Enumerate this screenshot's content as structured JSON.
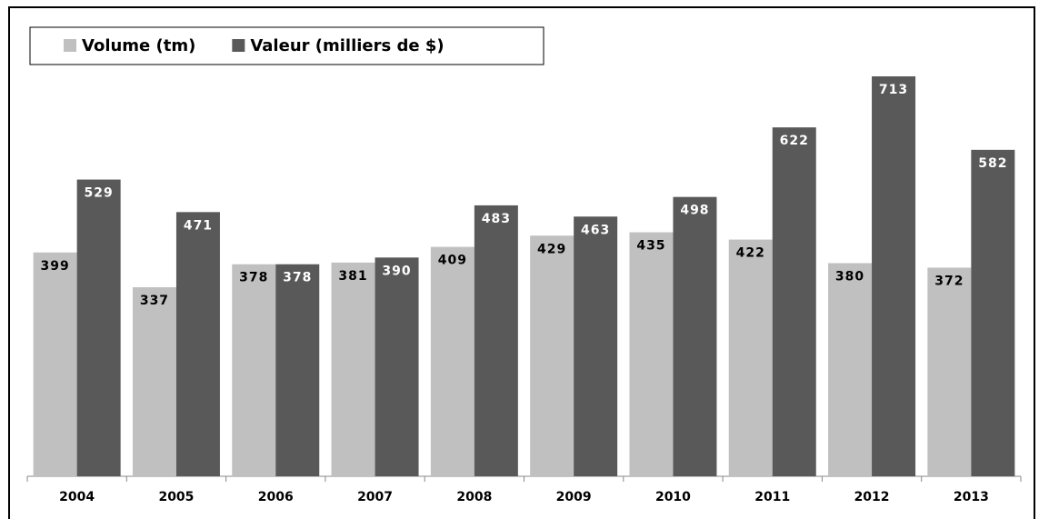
{
  "chart_data": {
    "type": "bar",
    "categories": [
      "2004",
      "2005",
      "2006",
      "2007",
      "2008",
      "2009",
      "2010",
      "2011",
      "2012",
      "2013"
    ],
    "series": [
      {
        "name": "Volume (tm)",
        "color": "#c0c0c0",
        "values": [
          399,
          337,
          378,
          381,
          409,
          429,
          435,
          422,
          380,
          372
        ]
      },
      {
        "name": "Valeur (milliers de $)",
        "color": "#595959",
        "values": [
          529,
          471,
          378,
          390,
          483,
          463,
          498,
          622,
          713,
          582
        ]
      }
    ],
    "legend": "top-left"
  }
}
